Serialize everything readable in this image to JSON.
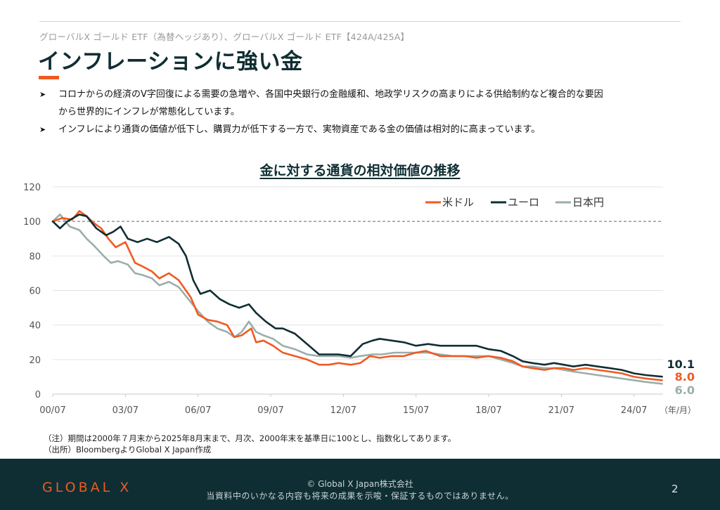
{
  "header": {
    "breadcrumb": "グローバルX ゴールド ETF（為替ヘッジあり）、グローバルX ゴールド ETF【424A/425A】",
    "title": "インフレーションに強い金",
    "accent_color": "#f05a22"
  },
  "bullets": [
    {
      "marker": "➤",
      "lines": [
        "コロナからの経済のV字回復による需要の急増や、各国中央銀行の金融緩和、地政学リスクの高まりによる供給制約など複合的な要因",
        "から世界的にインフレが常態化しています。"
      ]
    },
    {
      "marker": "➤",
      "lines": [
        "インフレにより通貨の価値が低下し、購買力が低下する一方で、実物資産である金の価値は相対的に高まっています。"
      ]
    }
  ],
  "chart_data": {
    "type": "line",
    "title": "金に対する通貨の相対価値の推移",
    "x_unit_label": "（年/月）",
    "x_ticks": [
      "00/07",
      "03/07",
      "06/07",
      "09/07",
      "12/07",
      "15/07",
      "18/07",
      "21/07",
      "24/07"
    ],
    "y_ticks": [
      0,
      20,
      40,
      60,
      80,
      100,
      120
    ],
    "ylim": [
      0,
      120
    ],
    "xlim": [
      2000.5,
      2025.7
    ],
    "reference_line": 100,
    "grid": "horizontal",
    "legend": "top-right",
    "series": [
      {
        "name": "米ドル",
        "color": "#f05a22",
        "end_label": "8.0",
        "points": [
          [
            2000.5,
            100
          ],
          [
            2000.9,
            102
          ],
          [
            2001.3,
            101
          ],
          [
            2001.6,
            106
          ],
          [
            2001.9,
            103
          ],
          [
            2002.2,
            99
          ],
          [
            2002.5,
            96
          ],
          [
            2002.8,
            90
          ],
          [
            2003.1,
            85
          ],
          [
            2003.5,
            88
          ],
          [
            2003.9,
            76
          ],
          [
            2004.2,
            74
          ],
          [
            2004.6,
            71
          ],
          [
            2004.9,
            67
          ],
          [
            2005.3,
            70
          ],
          [
            2005.7,
            66
          ],
          [
            2006.2,
            56
          ],
          [
            2006.5,
            46
          ],
          [
            2006.9,
            43
          ],
          [
            2007.3,
            42
          ],
          [
            2007.7,
            40
          ],
          [
            2008.0,
            33
          ],
          [
            2008.3,
            34
          ],
          [
            2008.7,
            38
          ],
          [
            2008.9,
            30
          ],
          [
            2009.2,
            31
          ],
          [
            2009.6,
            28
          ],
          [
            2010.0,
            24
          ],
          [
            2010.5,
            22
          ],
          [
            2011.0,
            20
          ],
          [
            2011.5,
            17
          ],
          [
            2011.9,
            17
          ],
          [
            2012.3,
            18
          ],
          [
            2012.8,
            17
          ],
          [
            2013.2,
            18
          ],
          [
            2013.6,
            22
          ],
          [
            2014.0,
            21
          ],
          [
            2014.5,
            22
          ],
          [
            2015.0,
            22
          ],
          [
            2015.5,
            24
          ],
          [
            2015.9,
            25
          ],
          [
            2016.5,
            22
          ],
          [
            2017.0,
            22
          ],
          [
            2017.5,
            22
          ],
          [
            2018.0,
            21
          ],
          [
            2018.5,
            22
          ],
          [
            2019.0,
            21
          ],
          [
            2019.5,
            19
          ],
          [
            2019.9,
            16
          ],
          [
            2020.3,
            15
          ],
          [
            2020.8,
            14
          ],
          [
            2021.2,
            15
          ],
          [
            2021.6,
            15
          ],
          [
            2022.0,
            14
          ],
          [
            2022.5,
            15
          ],
          [
            2023.0,
            14
          ],
          [
            2023.5,
            13
          ],
          [
            2024.0,
            12
          ],
          [
            2024.5,
            10
          ],
          [
            2025.0,
            9
          ],
          [
            2025.66,
            8.0
          ]
        ]
      },
      {
        "name": "ユーロ",
        "color": "#0f2e33",
        "end_label": "10.1",
        "points": [
          [
            2000.5,
            100
          ],
          [
            2000.8,
            96
          ],
          [
            2001.1,
            100
          ],
          [
            2001.6,
            104
          ],
          [
            2001.9,
            103
          ],
          [
            2002.3,
            96
          ],
          [
            2002.7,
            92
          ],
          [
            2003.0,
            94
          ],
          [
            2003.3,
            97
          ],
          [
            2003.6,
            90
          ],
          [
            2004.0,
            88
          ],
          [
            2004.4,
            90
          ],
          [
            2004.8,
            88
          ],
          [
            2005.3,
            91
          ],
          [
            2005.7,
            87
          ],
          [
            2006.0,
            80
          ],
          [
            2006.3,
            66
          ],
          [
            2006.6,
            58
          ],
          [
            2007.0,
            60
          ],
          [
            2007.4,
            55
          ],
          [
            2007.8,
            52
          ],
          [
            2008.2,
            50
          ],
          [
            2008.6,
            52
          ],
          [
            2008.9,
            47
          ],
          [
            2009.3,
            42
          ],
          [
            2009.7,
            38
          ],
          [
            2010.0,
            38
          ],
          [
            2010.5,
            35
          ],
          [
            2011.0,
            29
          ],
          [
            2011.5,
            23
          ],
          [
            2011.9,
            23
          ],
          [
            2012.3,
            23
          ],
          [
            2012.8,
            22
          ],
          [
            2013.3,
            29
          ],
          [
            2013.7,
            31
          ],
          [
            2014.0,
            32
          ],
          [
            2014.5,
            31
          ],
          [
            2015.0,
            30
          ],
          [
            2015.5,
            28
          ],
          [
            2016.0,
            29
          ],
          [
            2016.5,
            28
          ],
          [
            2017.0,
            28
          ],
          [
            2017.5,
            28
          ],
          [
            2018.0,
            28
          ],
          [
            2018.5,
            26
          ],
          [
            2019.0,
            25
          ],
          [
            2019.5,
            22
          ],
          [
            2019.9,
            19
          ],
          [
            2020.3,
            18
          ],
          [
            2020.8,
            17
          ],
          [
            2021.2,
            18
          ],
          [
            2021.6,
            17
          ],
          [
            2022.0,
            16
          ],
          [
            2022.5,
            17
          ],
          [
            2023.0,
            16
          ],
          [
            2023.5,
            15
          ],
          [
            2024.0,
            14
          ],
          [
            2024.5,
            12
          ],
          [
            2025.0,
            11
          ],
          [
            2025.66,
            10.1
          ]
        ]
      },
      {
        "name": "日本円",
        "color": "#9aaeab",
        "end_label": "6.0",
        "points": [
          [
            2000.5,
            100
          ],
          [
            2000.8,
            104
          ],
          [
            2001.2,
            97
          ],
          [
            2001.6,
            95
          ],
          [
            2001.9,
            90
          ],
          [
            2002.2,
            86
          ],
          [
            2002.6,
            80
          ],
          [
            2002.9,
            76
          ],
          [
            2003.2,
            77
          ],
          [
            2003.6,
            75
          ],
          [
            2003.9,
            70
          ],
          [
            2004.2,
            69
          ],
          [
            2004.6,
            67
          ],
          [
            2004.9,
            63
          ],
          [
            2005.3,
            65
          ],
          [
            2005.7,
            62
          ],
          [
            2006.1,
            55
          ],
          [
            2006.5,
            48
          ],
          [
            2006.9,
            42
          ],
          [
            2007.3,
            38
          ],
          [
            2007.7,
            36
          ],
          [
            2008.0,
            33
          ],
          [
            2008.3,
            36
          ],
          [
            2008.6,
            42
          ],
          [
            2008.9,
            36
          ],
          [
            2009.2,
            34
          ],
          [
            2009.6,
            32
          ],
          [
            2010.0,
            28
          ],
          [
            2010.5,
            26
          ],
          [
            2011.0,
            23
          ],
          [
            2011.5,
            22
          ],
          [
            2011.9,
            22
          ],
          [
            2012.3,
            22
          ],
          [
            2012.8,
            21
          ],
          [
            2013.2,
            22
          ],
          [
            2013.7,
            23
          ],
          [
            2014.1,
            23
          ],
          [
            2014.6,
            24
          ],
          [
            2015.0,
            24
          ],
          [
            2015.5,
            24
          ],
          [
            2016.0,
            24
          ],
          [
            2016.5,
            23
          ],
          [
            2017.0,
            22
          ],
          [
            2017.5,
            22
          ],
          [
            2018.0,
            22
          ],
          [
            2018.5,
            22
          ],
          [
            2019.0,
            20
          ],
          [
            2019.5,
            18
          ],
          [
            2019.9,
            16
          ],
          [
            2020.3,
            16
          ],
          [
            2020.8,
            15
          ],
          [
            2021.2,
            15
          ],
          [
            2021.6,
            14
          ],
          [
            2022.0,
            13
          ],
          [
            2022.5,
            12
          ],
          [
            2023.0,
            11
          ],
          [
            2023.5,
            10
          ],
          [
            2024.0,
            9
          ],
          [
            2024.5,
            8
          ],
          [
            2025.0,
            7
          ],
          [
            2025.66,
            6.0
          ]
        ]
      }
    ]
  },
  "notes": [
    "（注）期間は2000年７月末から2025年8月末まで、月次、2000年末を基準日に100とし、指数化してあります。",
    "（出所）BloombergよりGlobal X Japan作成"
  ],
  "footer": {
    "logo": "GLOBAL X",
    "copyright": "© Global X Japan株式会社",
    "disclaimer": "当資料中のいかなる内容も将来の成果を示唆・保証するものではありません。",
    "page_number": "2",
    "background": "#0e2e33"
  }
}
